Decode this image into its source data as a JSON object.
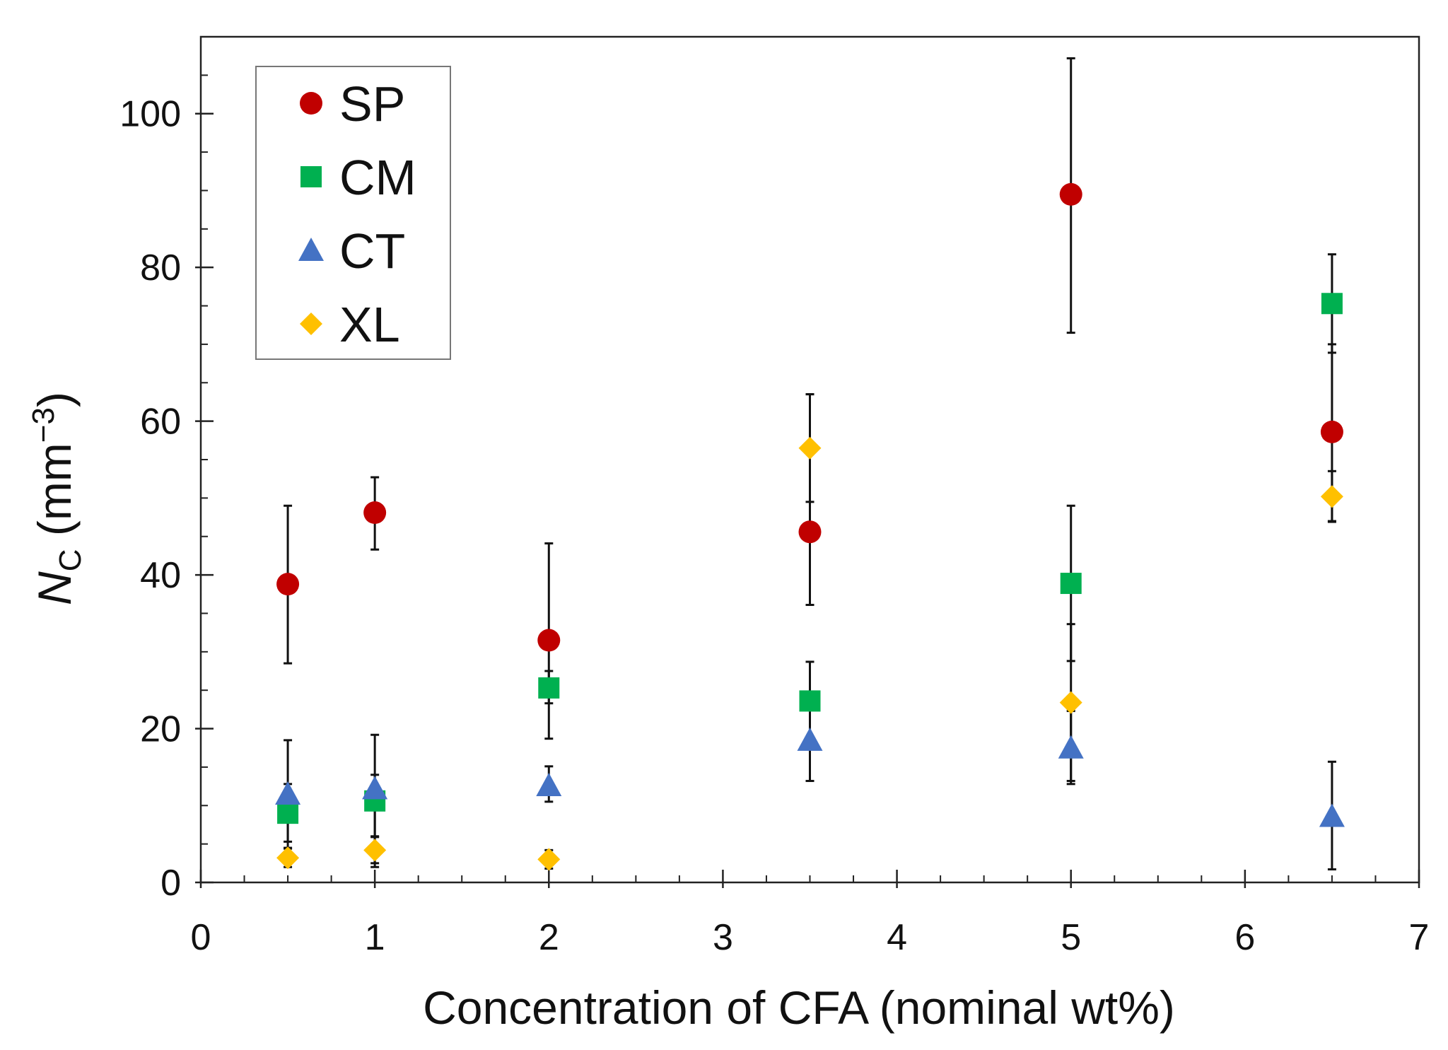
{
  "chart_data": {
    "type": "scatter",
    "title": "",
    "xlabel": "Concentration of CFA (nominal wt%)",
    "ylabel": {
      "symbol": "N",
      "subscript": "C",
      "units_open": " (mm",
      "units_exp": "−3",
      "units_close": ")"
    },
    "xlim": [
      0,
      7
    ],
    "ylim": [
      0,
      110
    ],
    "x_ticks": [
      0,
      1,
      2,
      3,
      4,
      5,
      6,
      7
    ],
    "x_minor_step": 0.25,
    "y_ticks": [
      0,
      20,
      40,
      60,
      80,
      100
    ],
    "y_minor_step": 5,
    "grid": false,
    "legend_position": "top-left",
    "series": [
      {
        "name": "SP",
        "marker": "circle",
        "color": "#C00000",
        "points": [
          {
            "x": 0.5,
            "y": 38.8,
            "err_low": 28.5,
            "err_high": 49.0
          },
          {
            "x": 1.0,
            "y": 48.1,
            "err_low": 43.3,
            "err_high": 52.7
          },
          {
            "x": 2.0,
            "y": 31.5,
            "err_low": 18.7,
            "err_high": 44.1
          },
          {
            "x": 3.5,
            "y": 45.6,
            "err_low": 36.1,
            "err_high": 63.5
          },
          {
            "x": 5.0,
            "y": 89.5,
            "err_low": 71.5,
            "err_high": 107.2
          },
          {
            "x": 6.5,
            "y": 58.6,
            "err_low": 47.0,
            "err_high": 70.0
          }
        ]
      },
      {
        "name": "CM",
        "marker": "square",
        "color": "#00B050",
        "points": [
          {
            "x": 0.5,
            "y": 9.0,
            "err_low": 5.3,
            "err_high": 12.8
          },
          {
            "x": 1.0,
            "y": 10.6,
            "err_low": 6.0,
            "err_high": 14.0
          },
          {
            "x": 2.0,
            "y": 25.3,
            "err_low": 23.3,
            "err_high": 27.5
          },
          {
            "x": 3.5,
            "y": 23.6,
            "err_low": 18.6,
            "err_high": 28.7
          },
          {
            "x": 5.0,
            "y": 38.9,
            "err_low": 28.8,
            "err_high": 49.0
          },
          {
            "x": 6.5,
            "y": 75.3,
            "err_low": 68.9,
            "err_high": 81.7
          }
        ]
      },
      {
        "name": "CT",
        "marker": "triangle",
        "color": "#4472C4",
        "points": [
          {
            "x": 0.5,
            "y": 11.5,
            "err_low": 4.5,
            "err_high": 18.5
          },
          {
            "x": 1.0,
            "y": 12.2,
            "err_low": 2.0,
            "err_high": 19.2
          },
          {
            "x": 2.0,
            "y": 12.6,
            "err_low": 10.5,
            "err_high": 15.1
          },
          {
            "x": 3.5,
            "y": 18.5,
            "err_low": 13.2,
            "err_high": 23.8
          },
          {
            "x": 5.0,
            "y": 17.5,
            "err_low": 12.8,
            "err_high": 22.3
          },
          {
            "x": 6.5,
            "y": 8.6,
            "err_low": 1.7,
            "err_high": 15.7
          }
        ]
      },
      {
        "name": "XL",
        "marker": "diamond",
        "color": "#FFC000",
        "points": [
          {
            "x": 0.5,
            "y": 3.2,
            "err_low": 2.0,
            "err_high": 4.4
          },
          {
            "x": 1.0,
            "y": 4.2,
            "err_low": 2.5,
            "err_high": 5.9
          },
          {
            "x": 2.0,
            "y": 3.0,
            "err_low": 1.8,
            "err_high": 4.2
          },
          {
            "x": 3.5,
            "y": 56.5,
            "err_low": 49.5,
            "err_high": 63.5
          },
          {
            "x": 5.0,
            "y": 23.4,
            "err_low": 13.2,
            "err_high": 33.6
          },
          {
            "x": 6.5,
            "y": 50.2,
            "err_low": 46.9,
            "err_high": 53.5
          }
        ]
      }
    ]
  }
}
